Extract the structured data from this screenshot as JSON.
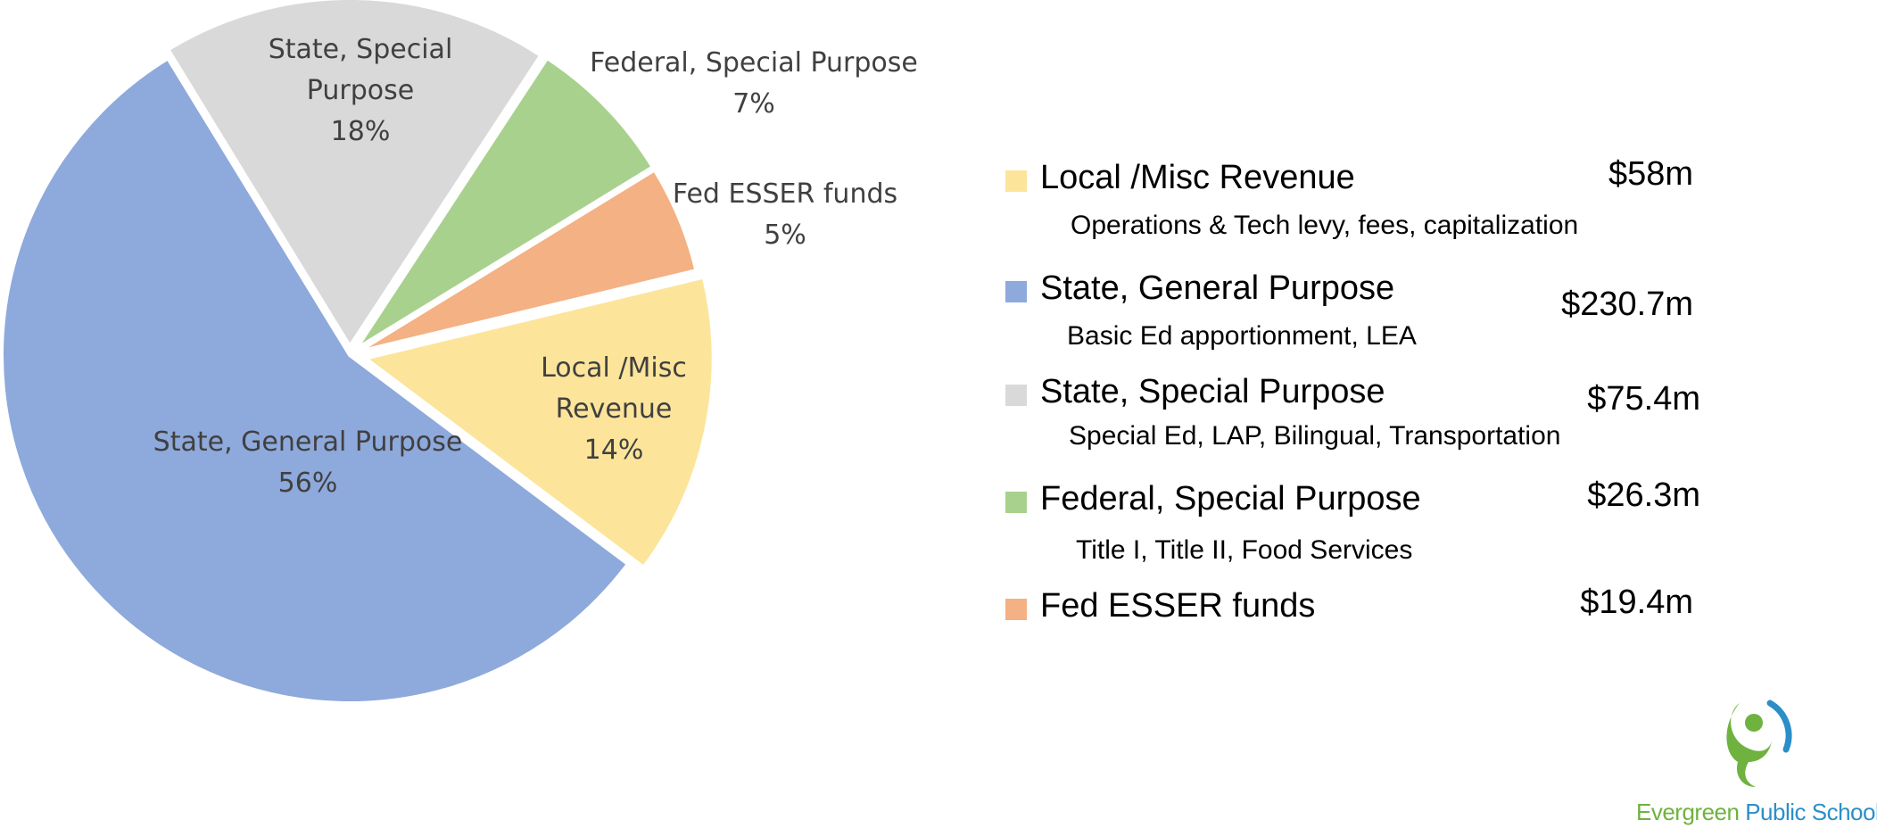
{
  "chart_data": {
    "type": "pie",
    "slices": [
      {
        "name": "Local /Misc Revenue",
        "name_lines": [
          "Local /Misc",
          "Revenue"
        ],
        "percent": 14,
        "percent_label": "14%",
        "color": "#FCE59B"
      },
      {
        "name": "State, General Purpose",
        "name_lines": [
          "State, General Purpose"
        ],
        "percent": 56,
        "percent_label": "56%",
        "color": "#8EA9DB"
      },
      {
        "name": "State, Special Purpose",
        "name_lines": [
          "State, Special",
          "Purpose"
        ],
        "percent": 18,
        "percent_label": "18%",
        "color": "#D9D9D9"
      },
      {
        "name": "Federal, Special Purpose",
        "name_lines": [
          "Federal, Special Purpose"
        ],
        "percent": 7,
        "percent_label": "7%",
        "color": "#A9D18E"
      },
      {
        "name": "Fed ESSER funds",
        "name_lines": [
          "Fed ESSER funds"
        ],
        "percent": 5,
        "percent_label": "5%",
        "color": "#F4B183"
      }
    ]
  },
  "legend": [
    {
      "name": "Local /Misc Revenue",
      "amount": "$58m",
      "detail": "Operations & Tech levy, fees, capitalization",
      "color": "#FCE59B"
    },
    {
      "name": "State, General Purpose",
      "amount": "$230.7m",
      "detail": "Basic Ed apportionment,  LEA",
      "color": "#8EA9DB"
    },
    {
      "name": "State, Special Purpose",
      "amount": "$75.4m",
      "detail": "Special Ed, LAP, Bilingual, Transportation",
      "color": "#D9D9D9"
    },
    {
      "name": "Federal, Special Purpose",
      "amount": "$26.3m",
      "detail": "Title I, Title II, Food Services",
      "color": "#A9D18E"
    },
    {
      "name": "Fed ESSER funds",
      "amount": "$19.4m",
      "detail": "",
      "color": "#F4B183"
    }
  ],
  "logo": {
    "word1": "Evergreen",
    "word2": "Public Schools",
    "green": "#6fb23f",
    "blue": "#2a8fc9"
  }
}
